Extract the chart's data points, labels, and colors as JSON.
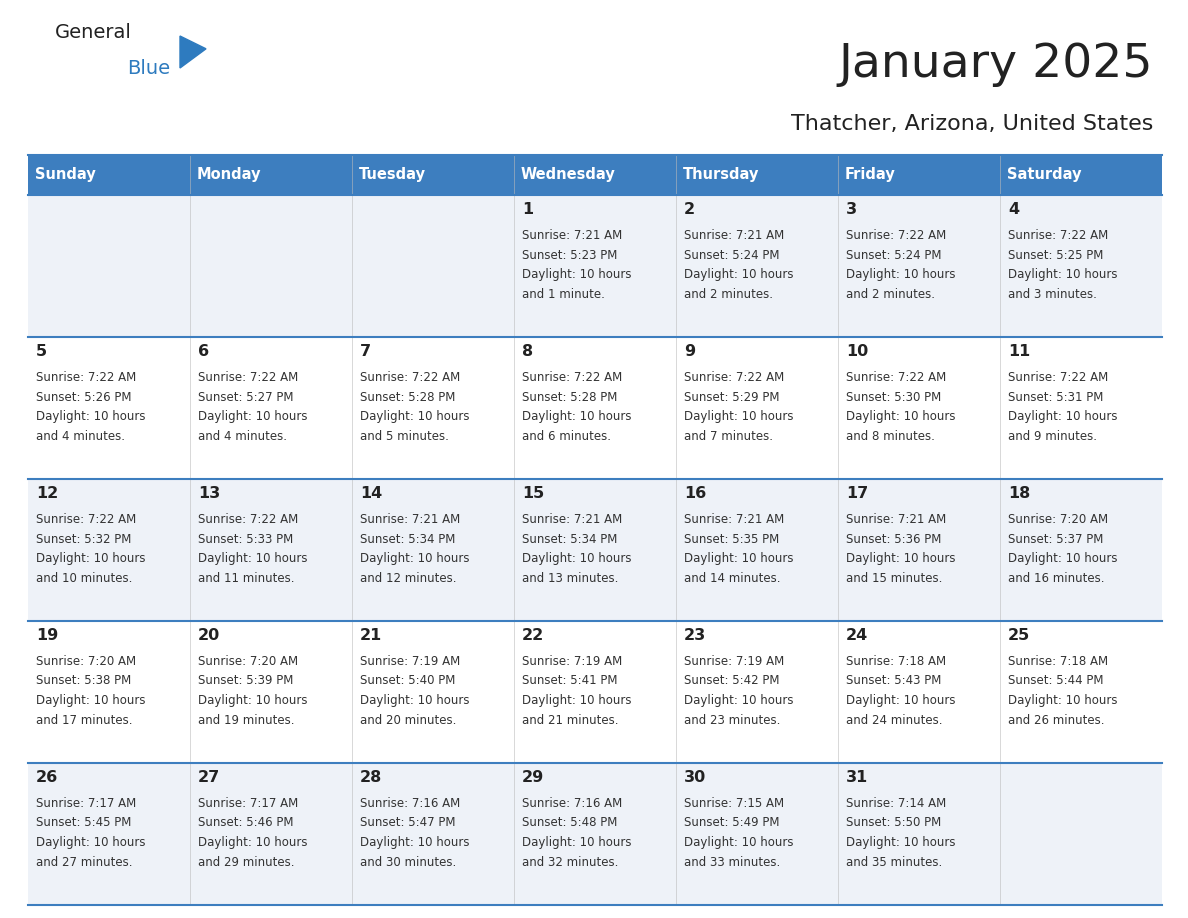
{
  "title": "January 2025",
  "subtitle": "Thatcher, Arizona, United States",
  "days_of_week": [
    "Sunday",
    "Monday",
    "Tuesday",
    "Wednesday",
    "Thursday",
    "Friday",
    "Saturday"
  ],
  "header_bg": "#3d7ebf",
  "header_text": "#FFFFFF",
  "row_bg_odd": "#eef2f8",
  "row_bg_even": "#FFFFFF",
  "cell_border": "#3d7ebf",
  "day_num_color": "#222222",
  "text_color": "#333333",
  "calendar_data": [
    [
      null,
      null,
      null,
      {
        "day": "1",
        "sunrise": "7:21 AM",
        "sunset": "5:23 PM",
        "daylight": "10 hours and 1 minute."
      },
      {
        "day": "2",
        "sunrise": "7:21 AM",
        "sunset": "5:24 PM",
        "daylight": "10 hours and 2 minutes."
      },
      {
        "day": "3",
        "sunrise": "7:22 AM",
        "sunset": "5:24 PM",
        "daylight": "10 hours and 2 minutes."
      },
      {
        "day": "4",
        "sunrise": "7:22 AM",
        "sunset": "5:25 PM",
        "daylight": "10 hours and 3 minutes."
      }
    ],
    [
      {
        "day": "5",
        "sunrise": "7:22 AM",
        "sunset": "5:26 PM",
        "daylight": "10 hours and 4 minutes."
      },
      {
        "day": "6",
        "sunrise": "7:22 AM",
        "sunset": "5:27 PM",
        "daylight": "10 hours and 4 minutes."
      },
      {
        "day": "7",
        "sunrise": "7:22 AM",
        "sunset": "5:28 PM",
        "daylight": "10 hours and 5 minutes."
      },
      {
        "day": "8",
        "sunrise": "7:22 AM",
        "sunset": "5:28 PM",
        "daylight": "10 hours and 6 minutes."
      },
      {
        "day": "9",
        "sunrise": "7:22 AM",
        "sunset": "5:29 PM",
        "daylight": "10 hours and 7 minutes."
      },
      {
        "day": "10",
        "sunrise": "7:22 AM",
        "sunset": "5:30 PM",
        "daylight": "10 hours and 8 minutes."
      },
      {
        "day": "11",
        "sunrise": "7:22 AM",
        "sunset": "5:31 PM",
        "daylight": "10 hours and 9 minutes."
      }
    ],
    [
      {
        "day": "12",
        "sunrise": "7:22 AM",
        "sunset": "5:32 PM",
        "daylight": "10 hours and 10 minutes."
      },
      {
        "day": "13",
        "sunrise": "7:22 AM",
        "sunset": "5:33 PM",
        "daylight": "10 hours and 11 minutes."
      },
      {
        "day": "14",
        "sunrise": "7:21 AM",
        "sunset": "5:34 PM",
        "daylight": "10 hours and 12 minutes."
      },
      {
        "day": "15",
        "sunrise": "7:21 AM",
        "sunset": "5:34 PM",
        "daylight": "10 hours and 13 minutes."
      },
      {
        "day": "16",
        "sunrise": "7:21 AM",
        "sunset": "5:35 PM",
        "daylight": "10 hours and 14 minutes."
      },
      {
        "day": "17",
        "sunrise": "7:21 AM",
        "sunset": "5:36 PM",
        "daylight": "10 hours and 15 minutes."
      },
      {
        "day": "18",
        "sunrise": "7:20 AM",
        "sunset": "5:37 PM",
        "daylight": "10 hours and 16 minutes."
      }
    ],
    [
      {
        "day": "19",
        "sunrise": "7:20 AM",
        "sunset": "5:38 PM",
        "daylight": "10 hours and 17 minutes."
      },
      {
        "day": "20",
        "sunrise": "7:20 AM",
        "sunset": "5:39 PM",
        "daylight": "10 hours and 19 minutes."
      },
      {
        "day": "21",
        "sunrise": "7:19 AM",
        "sunset": "5:40 PM",
        "daylight": "10 hours and 20 minutes."
      },
      {
        "day": "22",
        "sunrise": "7:19 AM",
        "sunset": "5:41 PM",
        "daylight": "10 hours and 21 minutes."
      },
      {
        "day": "23",
        "sunrise": "7:19 AM",
        "sunset": "5:42 PM",
        "daylight": "10 hours and 23 minutes."
      },
      {
        "day": "24",
        "sunrise": "7:18 AM",
        "sunset": "5:43 PM",
        "daylight": "10 hours and 24 minutes."
      },
      {
        "day": "25",
        "sunrise": "7:18 AM",
        "sunset": "5:44 PM",
        "daylight": "10 hours and 26 minutes."
      }
    ],
    [
      {
        "day": "26",
        "sunrise": "7:17 AM",
        "sunset": "5:45 PM",
        "daylight": "10 hours and 27 minutes."
      },
      {
        "day": "27",
        "sunrise": "7:17 AM",
        "sunset": "5:46 PM",
        "daylight": "10 hours and 29 minutes."
      },
      {
        "day": "28",
        "sunrise": "7:16 AM",
        "sunset": "5:47 PM",
        "daylight": "10 hours and 30 minutes."
      },
      {
        "day": "29",
        "sunrise": "7:16 AM",
        "sunset": "5:48 PM",
        "daylight": "10 hours and 32 minutes."
      },
      {
        "day": "30",
        "sunrise": "7:15 AM",
        "sunset": "5:49 PM",
        "daylight": "10 hours and 33 minutes."
      },
      {
        "day": "31",
        "sunrise": "7:14 AM",
        "sunset": "5:50 PM",
        "daylight": "10 hours and 35 minutes."
      },
      null
    ]
  ],
  "logo_general_color": "#222222",
  "logo_blue_color": "#2E7BBF",
  "triangle_color": "#2E7BBF",
  "fig_width": 11.88,
  "fig_height": 9.18,
  "dpi": 100
}
